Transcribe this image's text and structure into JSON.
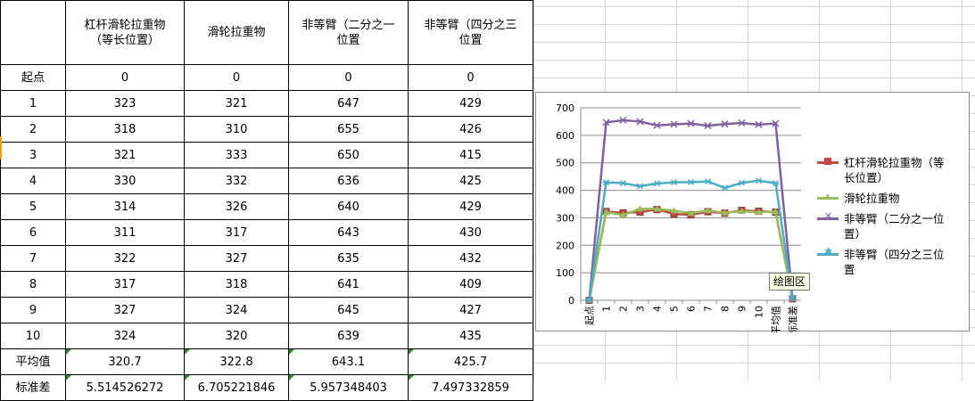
{
  "table": {
    "headers": [
      "",
      "杠杆滑轮拉重物\n（等长位置）",
      "滑轮拉重物",
      "非等臂（二分之一\n位置",
      "非等臂（四分之三\n位置"
    ],
    "rows": [
      [
        "起点",
        "0",
        "0",
        "0",
        "0"
      ],
      [
        "1",
        "323",
        "321",
        "647",
        "429"
      ],
      [
        "2",
        "318",
        "310",
        "655",
        "426"
      ],
      [
        "3",
        "321",
        "333",
        "650",
        "415"
      ],
      [
        "4",
        "330",
        "332",
        "636",
        "425"
      ],
      [
        "5",
        "314",
        "326",
        "640",
        "429"
      ],
      [
        "6",
        "311",
        "317",
        "643",
        "430"
      ],
      [
        "7",
        "322",
        "327",
        "635",
        "432"
      ],
      [
        "8",
        "317",
        "318",
        "641",
        "409"
      ],
      [
        "9",
        "327",
        "324",
        "645",
        "427"
      ],
      [
        "10",
        "324",
        "320",
        "639",
        "435"
      ]
    ],
    "summary": [
      [
        "平均值",
        "320.7",
        "322.8",
        "643.1",
        "425.7"
      ],
      [
        "标准差",
        "5.514526272",
        "6.705221846",
        "5.957348403",
        "7.497332859"
      ]
    ]
  },
  "tooltip": "绘图区",
  "chart_data": {
    "type": "line",
    "categories": [
      "起点",
      "1",
      "2",
      "3",
      "4",
      "5",
      "6",
      "7",
      "8",
      "9",
      "10",
      "平均值",
      "标准差"
    ],
    "ylim": [
      0,
      700
    ],
    "yticks": [
      0,
      100,
      200,
      300,
      400,
      500,
      600,
      700
    ],
    "ytick_labels": [
      "0",
      "100",
      "200",
      "300",
      "400",
      "500",
      "600",
      "700"
    ],
    "grid": true,
    "legend_position": "right",
    "series": [
      {
        "name": "杠杆滑轮拉重物（等长位置）",
        "legend_lines": [
          "杠杆滑轮拉重物（等",
          "长位置）"
        ],
        "color": "#be4b48",
        "marker": "square",
        "values": [
          0,
          323,
          318,
          321,
          330,
          314,
          311,
          322,
          317,
          327,
          324,
          320.7,
          5.514526272
        ]
      },
      {
        "name": "滑轮拉重物",
        "legend_lines": [
          "滑轮拉重物"
        ],
        "color": "#9bbb59",
        "marker": "triangle",
        "values": [
          0,
          321,
          310,
          333,
          332,
          326,
          317,
          327,
          318,
          324,
          320,
          322.8,
          6.705221846
        ]
      },
      {
        "name": "非等臂（二分之一位置",
        "legend_lines": [
          "非等臂（二分之一位",
          "置）"
        ],
        "color": "#7f60a0",
        "marker": "x",
        "values": [
          0,
          647,
          655,
          650,
          636,
          640,
          643,
          635,
          641,
          645,
          639,
          643.1,
          5.957348403
        ]
      },
      {
        "name": "非等臂（四分之三位置",
        "legend_lines": [
          "非等臂（四分之三位",
          "置"
        ],
        "color": "#4bacc6",
        "marker": "star",
        "values": [
          0,
          429,
          426,
          415,
          425,
          429,
          430,
          432,
          409,
          427,
          435,
          425.7,
          7.497332859
        ]
      }
    ]
  }
}
